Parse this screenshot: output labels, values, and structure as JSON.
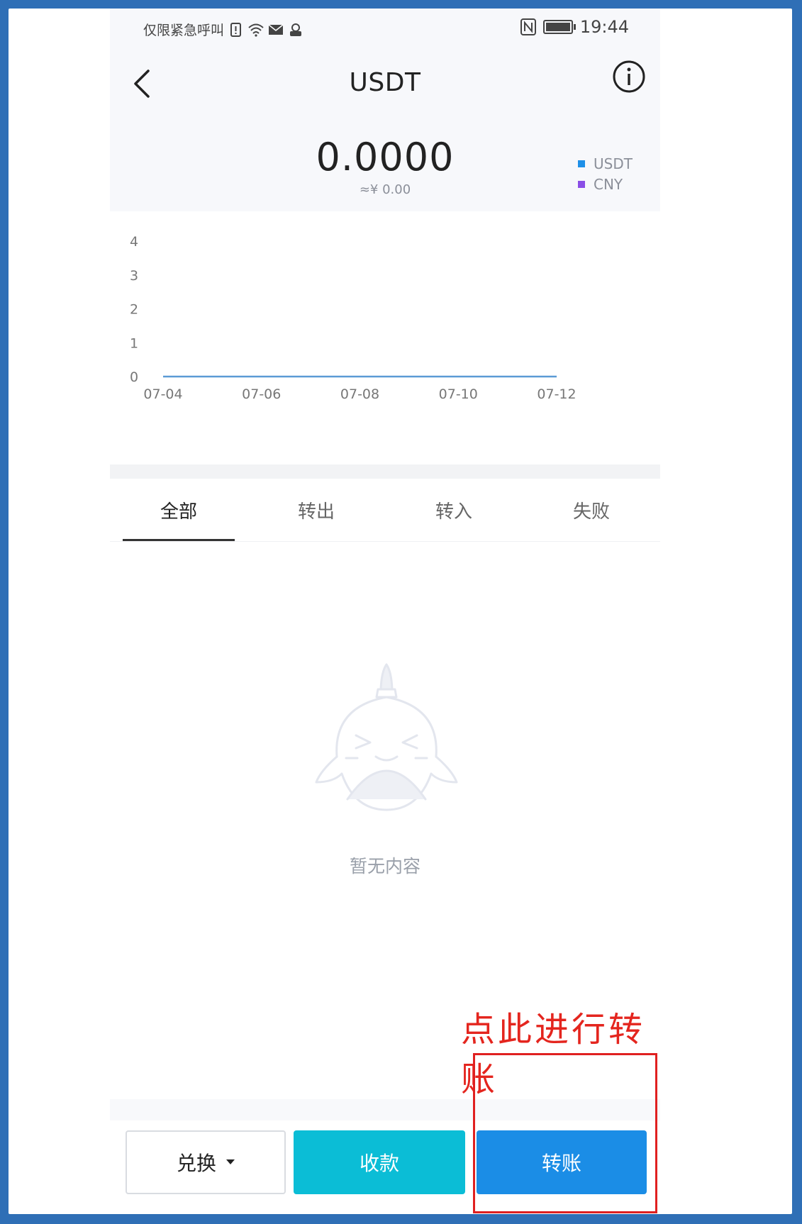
{
  "status_bar": {
    "emergency_text": "仅限紧急呼叫",
    "time": "19:44"
  },
  "header": {
    "title": "USDT",
    "balance": "0.0000",
    "fiat_value": "≈¥ 0.00"
  },
  "legend": [
    {
      "label": "USDT",
      "color": "#1e90e8"
    },
    {
      "label": "CNY",
      "color": "#8a4ee6"
    }
  ],
  "chart_data": {
    "type": "line",
    "categories": [
      "07-04",
      "07-06",
      "07-08",
      "07-10",
      "07-12"
    ],
    "y_ticks": [
      0,
      1,
      2,
      3,
      4
    ],
    "ylim": [
      0,
      4
    ],
    "series": [
      {
        "name": "USDT",
        "values": [
          0,
          0,
          0,
          0,
          0
        ],
        "color": "#5b9bd5"
      }
    ],
    "legend": "top-right"
  },
  "tabs": [
    {
      "label": "全部",
      "active": true
    },
    {
      "label": "转出",
      "active": false
    },
    {
      "label": "转入",
      "active": false
    },
    {
      "label": "失败",
      "active": false
    }
  ],
  "empty_state": {
    "text": "暂无内容"
  },
  "annotation": {
    "text": "点此进行转账"
  },
  "actions": {
    "exchange_label": "兑换",
    "receive_label": "收款",
    "transfer_label": "转账"
  },
  "colors": {
    "receive_button": "#0bbdd6",
    "transfer_button": "#1b8de6",
    "annotation": "#e4251e"
  }
}
